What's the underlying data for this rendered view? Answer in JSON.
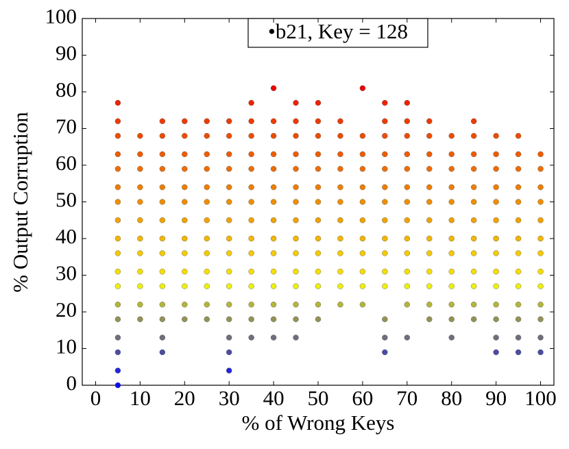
{
  "chart_data": {
    "type": "scatter",
    "title": "•b21, Key = 128",
    "x_label": "% of Wrong Keys",
    "y_label": "% Output Corruption",
    "xlim": [
      -3,
      103
    ],
    "ylim": [
      0,
      100
    ],
    "xticks": [
      0,
      10,
      20,
      30,
      40,
      50,
      60,
      70,
      80,
      90,
      100
    ],
    "yticks": [
      0,
      10,
      20,
      30,
      40,
      50,
      60,
      70,
      80,
      90,
      100
    ],
    "grid": false,
    "series": [
      {
        "color": "#ee0000",
        "x": [
          40,
          60
        ],
        "values": [
          81,
          81
        ]
      },
      {
        "color": "#ee2200",
        "x": [
          5,
          35,
          45,
          50,
          65,
          70
        ],
        "values": [
          77,
          77,
          77,
          77,
          77,
          77
        ]
      },
      {
        "color": "#ee3a00",
        "x": [
          5,
          15,
          20,
          25,
          30,
          35,
          40,
          45,
          50,
          55,
          65,
          70,
          75,
          85
        ],
        "values": [
          72,
          72,
          72,
          72,
          72,
          72,
          72,
          72,
          72,
          72,
          72,
          72,
          72,
          72
        ]
      },
      {
        "color": "#ee4c00",
        "x": [
          5,
          10,
          15,
          20,
          25,
          30,
          35,
          40,
          45,
          50,
          55,
          60,
          65,
          70,
          75,
          80,
          85,
          90,
          95
        ],
        "values": [
          68,
          68,
          68,
          68,
          68,
          68,
          68,
          68,
          68,
          68,
          68,
          68,
          68,
          68,
          68,
          68,
          68,
          68,
          68
        ]
      },
      {
        "color": "#ee5c00",
        "x": [
          5,
          10,
          15,
          20,
          25,
          30,
          35,
          40,
          45,
          50,
          55,
          60,
          65,
          70,
          75,
          80,
          85,
          90,
          95,
          100
        ],
        "values": [
          63,
          63,
          63,
          63,
          63,
          63,
          63,
          63,
          63,
          63,
          63,
          63,
          63,
          63,
          63,
          63,
          63,
          63,
          63,
          63
        ]
      },
      {
        "color": "#ee6c00",
        "x": [
          5,
          10,
          15,
          20,
          25,
          30,
          35,
          40,
          45,
          50,
          55,
          60,
          65,
          70,
          75,
          80,
          85,
          90,
          95,
          100
        ],
        "values": [
          59,
          59,
          59,
          59,
          59,
          59,
          59,
          59,
          59,
          59,
          59,
          59,
          59,
          59,
          59,
          59,
          59,
          59,
          59,
          59
        ]
      },
      {
        "color": "#ee7e00",
        "x": [
          5,
          10,
          15,
          20,
          25,
          30,
          35,
          40,
          45,
          50,
          55,
          60,
          65,
          70,
          75,
          80,
          85,
          90,
          95,
          100
        ],
        "values": [
          54,
          54,
          54,
          54,
          54,
          54,
          54,
          54,
          54,
          54,
          54,
          54,
          54,
          54,
          54,
          54,
          54,
          54,
          54,
          54
        ]
      },
      {
        "color": "#ee8e00",
        "x": [
          5,
          10,
          15,
          20,
          25,
          30,
          35,
          40,
          45,
          50,
          55,
          60,
          65,
          70,
          75,
          80,
          85,
          90,
          95,
          100
        ],
        "values": [
          50,
          50,
          50,
          50,
          50,
          50,
          50,
          50,
          50,
          50,
          50,
          50,
          50,
          50,
          50,
          50,
          50,
          50,
          50,
          50
        ]
      },
      {
        "color": "#f0a200",
        "x": [
          5,
          10,
          15,
          20,
          25,
          30,
          35,
          40,
          45,
          50,
          55,
          60,
          65,
          70,
          75,
          80,
          85,
          90,
          95,
          100
        ],
        "values": [
          45,
          45,
          45,
          45,
          45,
          45,
          45,
          45,
          45,
          45,
          45,
          45,
          45,
          45,
          45,
          45,
          45,
          45,
          45,
          45
        ]
      },
      {
        "color": "#f2b600",
        "x": [
          5,
          10,
          15,
          20,
          25,
          30,
          35,
          40,
          45,
          50,
          55,
          60,
          65,
          70,
          75,
          80,
          85,
          90,
          95,
          100
        ],
        "values": [
          40,
          40,
          40,
          40,
          40,
          40,
          40,
          40,
          40,
          40,
          40,
          40,
          40,
          40,
          40,
          40,
          40,
          40,
          40,
          40
        ]
      },
      {
        "color": "#f4ca00",
        "x": [
          5,
          10,
          15,
          20,
          25,
          30,
          35,
          40,
          45,
          50,
          55,
          60,
          65,
          70,
          75,
          80,
          85,
          90,
          95,
          100
        ],
        "values": [
          36,
          36,
          36,
          36,
          36,
          36,
          36,
          36,
          36,
          36,
          36,
          36,
          36,
          36,
          36,
          36,
          36,
          36,
          36,
          36
        ]
      },
      {
        "color": "#f6de00",
        "x": [
          5,
          10,
          15,
          20,
          25,
          30,
          35,
          40,
          45,
          50,
          55,
          60,
          65,
          70,
          75,
          80,
          85,
          90,
          95,
          100
        ],
        "values": [
          31,
          31,
          31,
          31,
          31,
          31,
          31,
          31,
          31,
          31,
          31,
          31,
          31,
          31,
          31,
          31,
          31,
          31,
          31,
          31
        ]
      },
      {
        "color": "#eeee10",
        "x": [
          5,
          10,
          15,
          20,
          25,
          30,
          35,
          40,
          45,
          50,
          55,
          60,
          65,
          70,
          75,
          80,
          85,
          90,
          95,
          100
        ],
        "values": [
          27,
          27,
          27,
          27,
          27,
          27,
          27,
          27,
          27,
          27,
          27,
          27,
          27,
          27,
          27,
          27,
          27,
          27,
          27,
          27
        ]
      },
      {
        "color": "#b4b43c",
        "x": [
          5,
          10,
          15,
          20,
          25,
          30,
          35,
          40,
          45,
          50,
          55,
          60,
          70,
          75,
          80,
          85,
          90,
          95,
          100
        ],
        "values": [
          22,
          22,
          22,
          22,
          22,
          22,
          22,
          22,
          22,
          22,
          22,
          22,
          22,
          22,
          22,
          22,
          22,
          22,
          22
        ]
      },
      {
        "color": "#929256",
        "x": [
          5,
          10,
          15,
          20,
          25,
          30,
          35,
          40,
          45,
          50,
          65,
          75,
          80,
          85,
          90,
          95,
          100
        ],
        "values": [
          18,
          18,
          18,
          18,
          18,
          18,
          18,
          18,
          18,
          18,
          18,
          18,
          18,
          18,
          18,
          18,
          18
        ]
      },
      {
        "color": "#6e6e7c",
        "x": [
          5,
          15,
          30,
          35,
          40,
          45,
          65,
          70,
          80,
          90,
          95,
          100
        ],
        "values": [
          13,
          13,
          13,
          13,
          13,
          13,
          13,
          13,
          13,
          13,
          13,
          13
        ]
      },
      {
        "color": "#4c4ca4",
        "x": [
          5,
          15,
          30,
          65,
          90,
          95,
          100
        ],
        "values": [
          9,
          9,
          9,
          9,
          9,
          9,
          9
        ]
      },
      {
        "color": "#2424dc",
        "x": [
          5,
          30
        ],
        "values": [
          4,
          4
        ]
      },
      {
        "color": "#0c0cf2",
        "x": [
          5
        ],
        "values": [
          0
        ]
      }
    ]
  }
}
